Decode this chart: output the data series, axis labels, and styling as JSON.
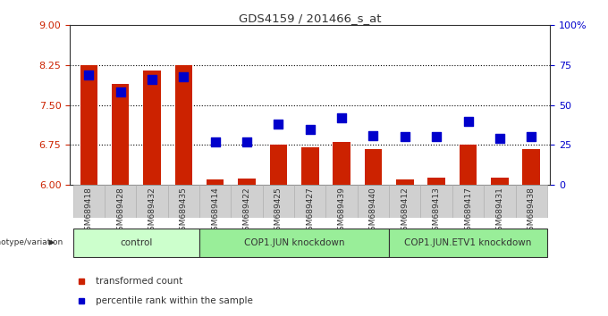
{
  "title": "GDS4159 / 201466_s_at",
  "samples": [
    "GSM689418",
    "GSM689428",
    "GSM689432",
    "GSM689435",
    "GSM689414",
    "GSM689422",
    "GSM689425",
    "GSM689427",
    "GSM689439",
    "GSM689440",
    "GSM689412",
    "GSM689413",
    "GSM689417",
    "GSM689431",
    "GSM689438"
  ],
  "transformed_count": [
    8.25,
    7.9,
    8.15,
    8.25,
    6.1,
    6.12,
    6.75,
    6.7,
    6.8,
    6.68,
    6.1,
    6.13,
    6.75,
    6.13,
    6.68
  ],
  "percentile_rank": [
    69,
    58,
    66,
    68,
    27,
    27,
    38,
    35,
    42,
    31,
    30,
    30,
    40,
    29,
    30
  ],
  "groups": [
    {
      "label": "control",
      "start": 0,
      "end": 4,
      "color": "#ccffcc"
    },
    {
      "label": "COP1.JUN knockdown",
      "start": 4,
      "end": 10,
      "color": "#99ee99"
    },
    {
      "label": "COP1.JUN.ETV1 knockdown",
      "start": 10,
      "end": 15,
      "color": "#99ee99"
    }
  ],
  "ylim": [
    6,
    9
  ],
  "ylim2": [
    0,
    100
  ],
  "yticks": [
    6,
    6.75,
    7.5,
    8.25,
    9
  ],
  "yticks2": [
    0,
    25,
    50,
    75,
    100
  ],
  "ytick_labels2": [
    "0",
    "25",
    "50",
    "75",
    "100%"
  ],
  "bar_color": "#cc2200",
  "dot_color": "#0000cc",
  "bar_width": 0.55,
  "dot_size": 45,
  "background_color": "#ffffff",
  "plot_bg_color": "#ffffff",
  "grid_color": "#000000",
  "ylabel_color": "#cc2200",
  "ylabel2_color": "#0000cc",
  "genotype_label": "genotype/variation",
  "legend_items": [
    {
      "label": "transformed count",
      "color": "#cc2200"
    },
    {
      "label": "percentile rank within the sample",
      "color": "#0000cc"
    }
  ],
  "group_border_color": "#333333",
  "xticklabel_bg": "#d0d0d0"
}
